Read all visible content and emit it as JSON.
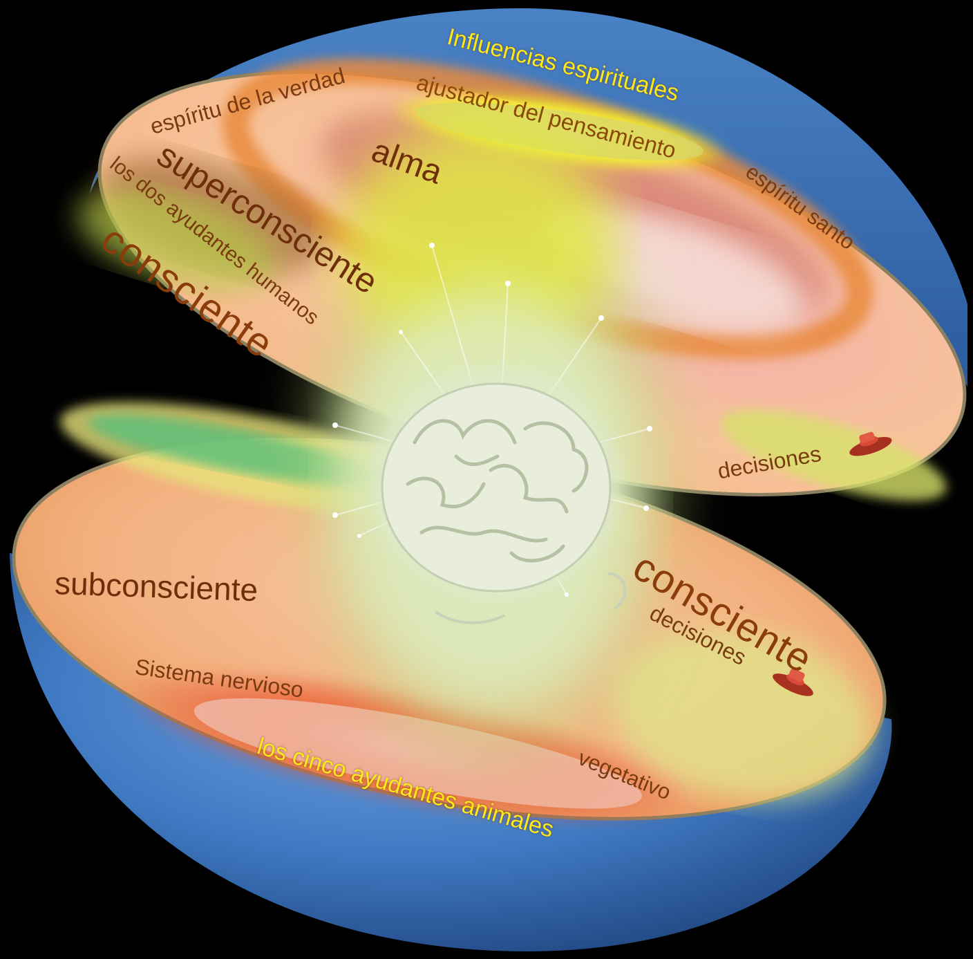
{
  "diagram": {
    "colors": {
      "background": "#000000",
      "sphere_blue": "#3f79c2",
      "ring_peach": "#f7c39a",
      "ring_orange": "#e98a3d",
      "ring_red": "#e5402a",
      "glow_green": "#c9e27a",
      "glow_yellow": "#fff21f",
      "text_brown": "#7a3a10",
      "text_yellow": "#ffe81a"
    },
    "labels": {
      "spiritual_influences": "Influencias espirituales",
      "spirit_of_truth": "espíritu de la verdad",
      "thought_adjuster": "ajustador del pensamiento",
      "holy_spirit": "espíritu santo",
      "soul": "alma",
      "superconscious": "superconsciente",
      "two_human_helpers": "los dos ayudantes humanos",
      "conscious_upper": "consciente",
      "decisions_upper": "decisiones",
      "subconscious": "subconsciente",
      "conscious_lower": "consciente",
      "decisions_lower": "decisiones",
      "nervous_system": "Sistema nervioso",
      "vegetative": "vegetativo",
      "five_animal_helpers": "los cinco ayudantes animales"
    },
    "icons": {
      "upper_decision": "red-push-button-icon",
      "lower_decision": "red-push-button-icon",
      "center": "brain-head-icon"
    }
  }
}
